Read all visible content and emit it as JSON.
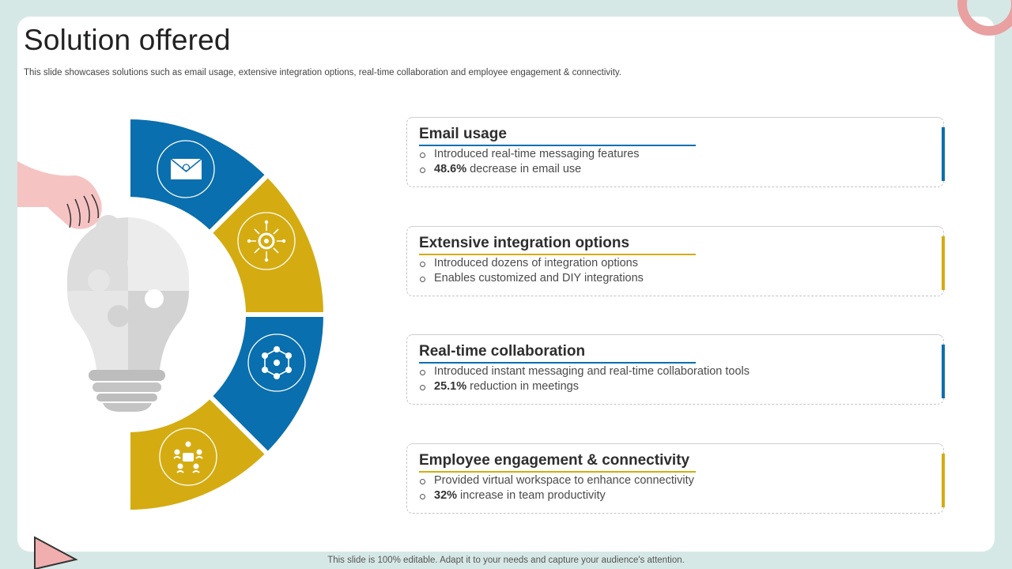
{
  "slide": {
    "title": "Solution offered",
    "subtitle": "This slide showcases solutions such as email usage, extensive integration options, real-time collaboration and employee engagement & connectivity.",
    "footer": "This slide is 100% editable. Adapt it to your needs and capture your audience's attention."
  },
  "colors": {
    "blue": "#0a6fae",
    "gold": "#d4ac12",
    "pink": "#f1aeae",
    "bulb": "#d9d9d9"
  },
  "segments": [
    {
      "icon": "envelope-icon"
    },
    {
      "icon": "gear-network-icon"
    },
    {
      "icon": "team-network-icon"
    },
    {
      "icon": "people-engagement-icon"
    }
  ],
  "cards": [
    {
      "title": "Email usage",
      "accent": "#0a6fae",
      "points": [
        {
          "highlight": "",
          "text": "Introduced real-time messaging features"
        },
        {
          "highlight": "48.6%",
          "text": " decrease in email use"
        }
      ]
    },
    {
      "title": "Extensive integration options",
      "accent": "#d4ac12",
      "points": [
        {
          "highlight": "",
          "text": "Introduced dozens of integration options"
        },
        {
          "highlight": "",
          "text": "Enables customized and DIY integrations"
        }
      ]
    },
    {
      "title": "Real-time collaboration",
      "accent": "#0a6fae",
      "points": [
        {
          "highlight": "",
          "text": "Introduced instant messaging and real-time collaboration tools"
        },
        {
          "highlight": "25.1%",
          "text": " reduction in meetings"
        }
      ]
    },
    {
      "title": "Employee engagement & connectivity",
      "accent": "#d4ac12",
      "points": [
        {
          "highlight": "",
          "text": "Provided virtual workspace to enhance connectivity"
        },
        {
          "highlight": "32%",
          "text": " increase in team productivity"
        }
      ]
    }
  ]
}
